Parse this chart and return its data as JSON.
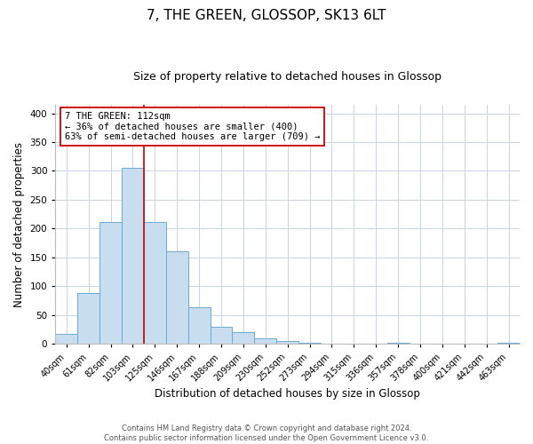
{
  "title": "7, THE GREEN, GLOSSOP, SK13 6LT",
  "subtitle": "Size of property relative to detached houses in Glossop",
  "xlabel": "Distribution of detached houses by size in Glossop",
  "ylabel": "Number of detached properties",
  "categories": [
    "40sqm",
    "61sqm",
    "82sqm",
    "103sqm",
    "125sqm",
    "146sqm",
    "167sqm",
    "188sqm",
    "209sqm",
    "230sqm",
    "252sqm",
    "273sqm",
    "294sqm",
    "315sqm",
    "336sqm",
    "357sqm",
    "378sqm",
    "400sqm",
    "421sqm",
    "442sqm",
    "463sqm"
  ],
  "values": [
    17,
    89,
    211,
    305,
    212,
    160,
    63,
    30,
    20,
    10,
    5,
    2,
    1,
    0,
    0,
    2,
    0,
    0,
    0,
    0,
    2
  ],
  "bar_color": "#c8ddf0",
  "bar_edge_color": "#6aaad4",
  "property_line_color": "#cc0000",
  "annotation_line1": "7 THE GREEN: 112sqm",
  "annotation_line2": "← 36% of detached houses are smaller (400)",
  "annotation_line3": "63% of semi-detached houses are larger (709) →",
  "annotation_box_color": "#ffffff",
  "annotation_box_edge": "#cc0000",
  "ylim": [
    0,
    415
  ],
  "yticks": [
    0,
    50,
    100,
    150,
    200,
    250,
    300,
    350,
    400
  ],
  "footer_line1": "Contains HM Land Registry data © Crown copyright and database right 2024.",
  "footer_line2": "Contains public sector information licensed under the Open Government Licence v3.0.",
  "bg_color": "#ffffff",
  "grid_color": "#c8d4e4",
  "title_fontsize": 11,
  "subtitle_fontsize": 9,
  "axis_label_fontsize": 8.5,
  "tick_fontsize": 7
}
